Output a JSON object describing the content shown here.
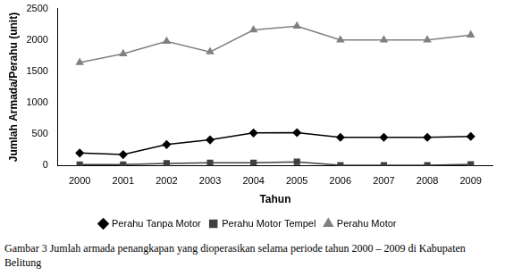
{
  "chart_data": {
    "type": "line",
    "x_label": "Tahun",
    "y_label": "Jumlah Armada/Perahu (unit)",
    "caption": "Gambar 3   Jumlah armada penangkapan yang dioperasikan selama periode tahun 2000 – 2009 di Kabupaten Belitung",
    "categories": [
      "2000",
      "2001",
      "2002",
      "2003",
      "2004",
      "2005",
      "2006",
      "2007",
      "2008",
      "2009"
    ],
    "series": [
      {
        "name": "Perahu Tanpa Motor",
        "color": "#000000",
        "marker": "diamond",
        "values": [
          200,
          175,
          335,
          410,
          520,
          525,
          450,
          450,
          450,
          465
        ]
      },
      {
        "name": "Perahu Motor Tempel",
        "color": "#404040",
        "marker": "square",
        "values": [
          15,
          15,
          35,
          45,
          45,
          60,
          5,
          5,
          5,
          20
        ]
      },
      {
        "name": "Perahu Motor",
        "color": "#808080",
        "marker": "triangle",
        "values": [
          1640,
          1780,
          1980,
          1810,
          2160,
          2220,
          2000,
          2000,
          2000,
          2080
        ]
      }
    ],
    "ylim": [
      0,
      2500
    ],
    "yticks": [
      0,
      500,
      1000,
      1500,
      2000,
      2500
    ],
    "grid": false,
    "legend": "bottom"
  }
}
